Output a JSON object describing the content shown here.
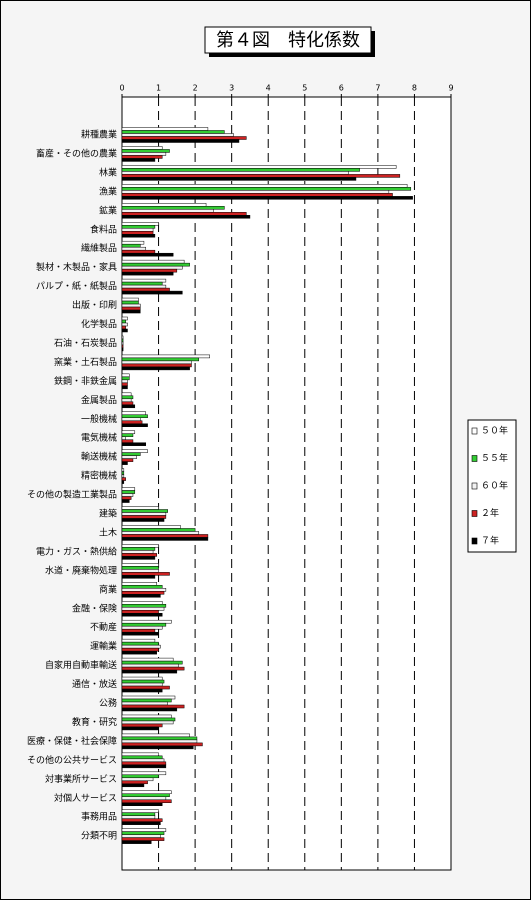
{
  "chart_data": {
    "type": "hbar",
    "title": "第４図　特化係数",
    "categories": [
      "耕種農業",
      "畜産・その他の農業",
      "林業",
      "漁業",
      "鉱業",
      "食料品",
      "繊維製品",
      "製材・木製品・家具",
      "パルプ・紙・紙製品",
      "出版・印刷",
      "化学製品",
      "石油・石炭製品",
      "窯業・土石製品",
      "鉄鋼・非鉄金属",
      "金属製品",
      "一般機械",
      "電気機械",
      "輸送機械",
      "精密機械",
      "その他の製造工業製品",
      "建築",
      "土木",
      "電力・ガス・熱供給",
      "水道・廃棄物処理",
      "商業",
      "金融・保険",
      "不動産",
      "運輸業",
      "自家用自動車輸送",
      "通信・放送",
      "公務",
      "教育・研究",
      "医療・保健・社会保障",
      "その他の公共サービス",
      "対事業所サービス",
      "対個人サービス",
      "事務用品",
      "分類不明"
    ],
    "series": [
      {
        "name": "５０年",
        "color": "#ffffff",
        "values": [
          2.35,
          1.1,
          7.5,
          7.8,
          2.3,
          1.0,
          0.6,
          1.7,
          1.2,
          0.45,
          0.15,
          0.03,
          2.4,
          0.2,
          0.25,
          0.65,
          0.35,
          0.7,
          0.05,
          0.35,
          1.0,
          1.6,
          1.0,
          1.0,
          0.95,
          1.1,
          1.35,
          0.9,
          1.4,
          1.1,
          1.45,
          1.35,
          1.85,
          1.0,
          1.2,
          1.35,
          1.0,
          1.2
        ]
      },
      {
        "name": "５５年",
        "color": "#33cc33",
        "values": [
          2.8,
          1.3,
          6.5,
          7.9,
          2.8,
          0.9,
          0.5,
          1.85,
          1.1,
          0.45,
          0.1,
          0.03,
          2.1,
          0.2,
          0.3,
          0.7,
          0.3,
          0.5,
          0.05,
          0.35,
          1.25,
          2.0,
          0.9,
          1.0,
          1.1,
          1.2,
          1.2,
          1.0,
          1.65,
          1.15,
          1.35,
          1.45,
          2.05,
          1.1,
          1.0,
          1.3,
          0.9,
          1.15
        ]
      },
      {
        "name": "６０年",
        "color": "#f2f2f2",
        "values": [
          3.05,
          1.2,
          6.2,
          7.3,
          2.5,
          0.85,
          0.65,
          1.65,
          1.2,
          0.5,
          0.15,
          0.03,
          1.9,
          0.15,
          0.25,
          0.5,
          0.1,
          0.4,
          0.05,
          0.3,
          1.2,
          2.1,
          0.85,
          1.0,
          1.2,
          1.15,
          1.1,
          1.05,
          1.55,
          1.1,
          1.25,
          1.4,
          2.05,
          1.15,
          0.85,
          1.2,
          0.9,
          1.05
        ]
      },
      {
        "name": "２年",
        "color": "#cc2222",
        "values": [
          3.4,
          1.1,
          7.6,
          7.4,
          3.4,
          0.85,
          0.9,
          1.5,
          1.3,
          0.5,
          0.1,
          0.03,
          1.9,
          0.15,
          0.3,
          0.55,
          0.3,
          0.3,
          0.1,
          0.25,
          1.2,
          2.35,
          0.95,
          1.3,
          1.15,
          1.0,
          0.9,
          1.0,
          1.7,
          1.3,
          1.7,
          1.1,
          2.2,
          1.2,
          0.7,
          1.35,
          1.1,
          1.15
        ]
      },
      {
        "name": "７年",
        "color": "#000000",
        "values": [
          3.2,
          0.9,
          6.4,
          7.95,
          3.5,
          0.9,
          1.4,
          1.4,
          1.65,
          0.5,
          0.15,
          0.03,
          1.85,
          0.15,
          0.35,
          0.7,
          0.65,
          0.15,
          0.05,
          0.2,
          1.15,
          2.35,
          0.9,
          0.9,
          1.05,
          1.1,
          1.0,
          0.95,
          1.5,
          1.1,
          1.5,
          1.0,
          1.95,
          1.2,
          0.6,
          1.1,
          1.05,
          0.8
        ]
      }
    ],
    "xlim": [
      0,
      9
    ],
    "xticks": [
      0,
      1,
      2,
      3,
      4,
      5,
      6,
      7,
      8,
      9
    ],
    "grid": true,
    "legend": "right"
  }
}
